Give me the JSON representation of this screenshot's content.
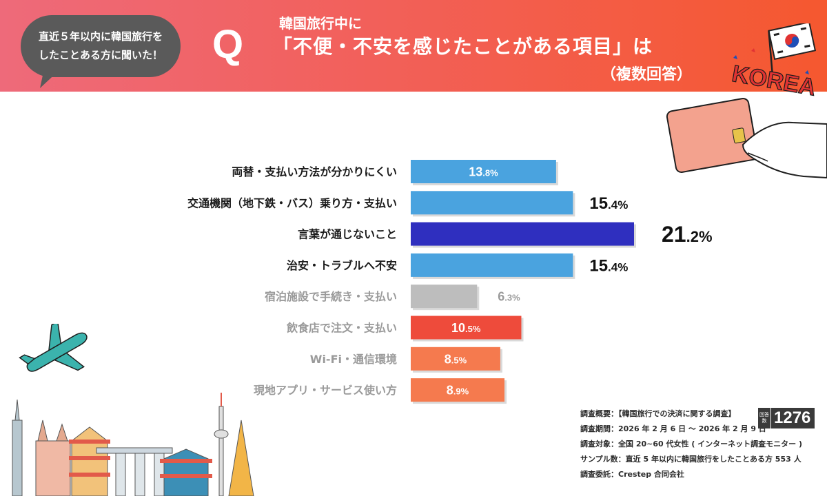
{
  "header": {
    "bubble_line1": "直近５年以内に韓国旅行を",
    "bubble_line2": "したことある方に聞いた！",
    "q_mark": "Q",
    "question_line1": "韓国旅行中に",
    "question_line2": "「不便・不安を感じたことがある項目」は",
    "question_line3": "（複数回答）",
    "korea_text": "KOREA"
  },
  "colors": {
    "header_start": "#ee6a7a",
    "header_end": "#f5582f",
    "blue": "#4aa3df",
    "navy": "#2f2fbf",
    "gray": "#bdbdbd",
    "red": "#ee4b3b",
    "orange": "#f57a4e"
  },
  "chart_data": {
    "type": "bar",
    "orientation": "horizontal",
    "categories": [
      "両替・支払い方法が分かりにくい",
      "交通機関（地下鉄・バス）乗り方・支払い",
      "言葉が通じないこと",
      "治安・トラブルへ不安",
      "宿泊施設で手続き・支払い",
      "飲食店で注文・支払い",
      "Wi-Fi・通信環境",
      "現地アプリ・サービス使い方"
    ],
    "values": [
      13.8,
      15.4,
      21.2,
      15.4,
      6.3,
      10.5,
      8.5,
      8.9
    ],
    "value_labels": [
      {
        "int": "13",
        "dec": ".8%"
      },
      {
        "int": "15",
        "dec": ".4%"
      },
      {
        "int": "21",
        "dec": ".2%"
      },
      {
        "int": "15",
        "dec": ".4%"
      },
      {
        "int": "6",
        "dec": ".3%"
      },
      {
        "int": "10",
        "dec": ".5%"
      },
      {
        "int": "8",
        "dec": ".5%"
      },
      {
        "int": "8",
        "dec": ".9%"
      }
    ],
    "bar_colors": [
      "#4aa3df",
      "#4aa3df",
      "#2f2fbf",
      "#4aa3df",
      "#bdbdbd",
      "#ee4b3b",
      "#f57a4e",
      "#f57a4e"
    ],
    "label_colors": [
      "#1a1a1a",
      "#1a1a1a",
      "#1a1a1a",
      "#1a1a1a",
      "#9a9a9a",
      "#9a9a9a",
      "#9a9a9a",
      "#9a9a9a"
    ],
    "value_inside": [
      true,
      false,
      false,
      false,
      false,
      true,
      true,
      true
    ],
    "value_emphasis": [
      "normal",
      "large",
      "xlarge",
      "large",
      "muted",
      "normal",
      "normal",
      "normal"
    ],
    "xlim": [
      0,
      21.2
    ],
    "title": "",
    "xlabel": "",
    "ylabel": "",
    "grid": false,
    "legend": "none"
  },
  "notes": {
    "line1": "調査概要：【韓国旅行での決済に関する調査】",
    "line2": "調査期間：2026 年 2 月 6 日 ～ 2026 年 2 月 9 日",
    "line3": "調査対象：全国 20~60 代女性 ( インターネット調査モニター )",
    "line4": "サンプル数：直近 5 年以内に韓国旅行をしたことある方 553 人",
    "line5": "調査委託：Crestep 合同会社"
  },
  "respondents": {
    "label": "回答数",
    "value": "1276"
  }
}
